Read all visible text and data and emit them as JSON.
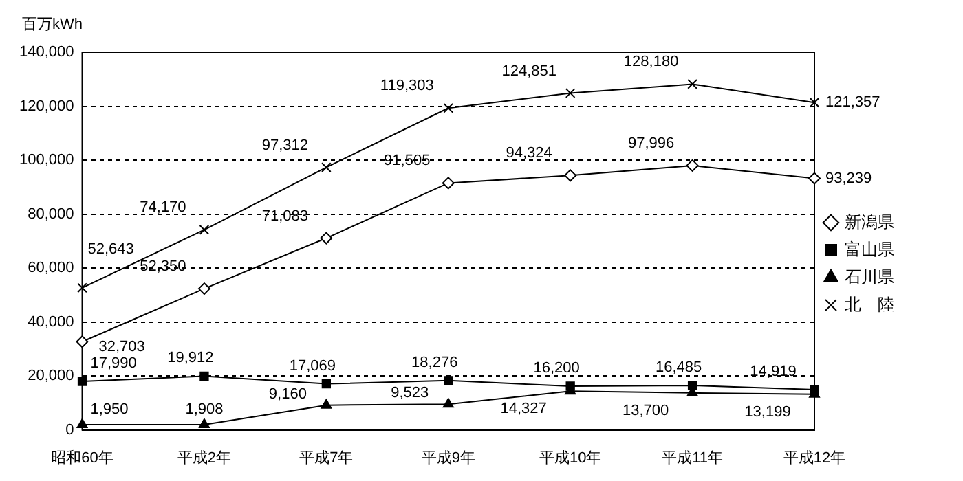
{
  "chart_data": {
    "type": "line",
    "ylabel": "百万kWh",
    "categories": [
      "昭和60年",
      "平成2年",
      "平成7年",
      "平成9年",
      "平成10年",
      "平成11年",
      "平成12年"
    ],
    "ylim": [
      0,
      140000
    ],
    "yticks": [
      0,
      {
        "value": 20000,
        "label": "20,000"
      },
      {
        "value": 40000,
        "label": "40,000"
      },
      {
        "value": 60000,
        "label": "60,000"
      },
      {
        "value": 80000,
        "label": "80,000"
      },
      {
        "value": 100000,
        "label": "100,000"
      },
      {
        "value": 120000,
        "label": "120,000"
      },
      {
        "value": 140000,
        "label": "140,000"
      }
    ],
    "grid": "y",
    "legend": "right",
    "line_style": "solid",
    "series": [
      {
        "name": "新潟県",
        "color": "#000000",
        "marker": "diamond",
        "values": [
          32703,
          52350,
          71083,
          91505,
          94324,
          97996,
          93239
        ],
        "value_labels": [
          "32,703",
          "52,350",
          "71,083",
          "91,505",
          "94,324",
          "97,996",
          "93,239"
        ]
      },
      {
        "name": "富山県",
        "color": "#000000",
        "marker": "square",
        "values": [
          17990,
          19912,
          17069,
          18276,
          16200,
          16485,
          14919
        ],
        "value_labels": [
          "17,990",
          "19,912",
          "17,069",
          "18,276",
          "16,200",
          "16,485",
          "14,919"
        ]
      },
      {
        "name": "石川県",
        "color": "#000000",
        "marker": "triangle",
        "values": [
          1950,
          1908,
          9160,
          9523,
          14327,
          13700,
          13199
        ],
        "value_labels": [
          "1,950",
          "1,908",
          "9,160",
          "9,523",
          "14,327",
          "13,700",
          "13,199"
        ]
      },
      {
        "name": "北　陸",
        "color": "#000000",
        "marker": "cross",
        "values": [
          52643,
          74170,
          97312,
          119303,
          124851,
          128180,
          121357
        ],
        "value_labels": [
          "52,643",
          "74,170",
          "97,312",
          "119,303",
          "124,851",
          "128,180",
          "121,357"
        ]
      }
    ]
  }
}
